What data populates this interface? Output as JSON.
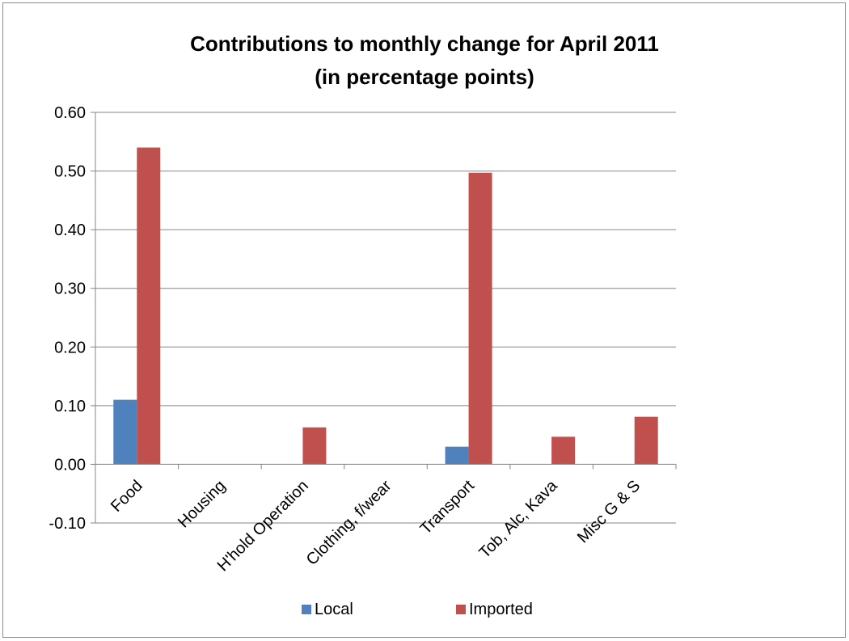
{
  "chart_data": {
    "type": "bar",
    "title": "Contributions to monthly change for  April 2011",
    "subtitle": "(in percentage points)",
    "xlabel": "",
    "ylabel": "",
    "categories": [
      "Food",
      "Housing",
      "H'hold Operation",
      "Clothing, f/wear",
      "Transport",
      "Tob, Alc, Kava",
      "Misc G & S"
    ],
    "series": [
      {
        "name": "Local",
        "color": "#4f81bd",
        "values": [
          0.11,
          0,
          0,
          0,
          0.03,
          0,
          0
        ]
      },
      {
        "name": "Imported",
        "color": "#c0504d",
        "values": [
          0.54,
          0,
          0.063,
          0,
          0.497,
          0.047,
          0.081
        ]
      }
    ],
    "ylim": [
      -0.1,
      0.6
    ],
    "yticks": [
      "-0.10",
      "0.00",
      "0.10",
      "0.20",
      "0.30",
      "0.40",
      "0.50",
      "0.60"
    ],
    "grid": true,
    "legend_position": "bottom"
  }
}
